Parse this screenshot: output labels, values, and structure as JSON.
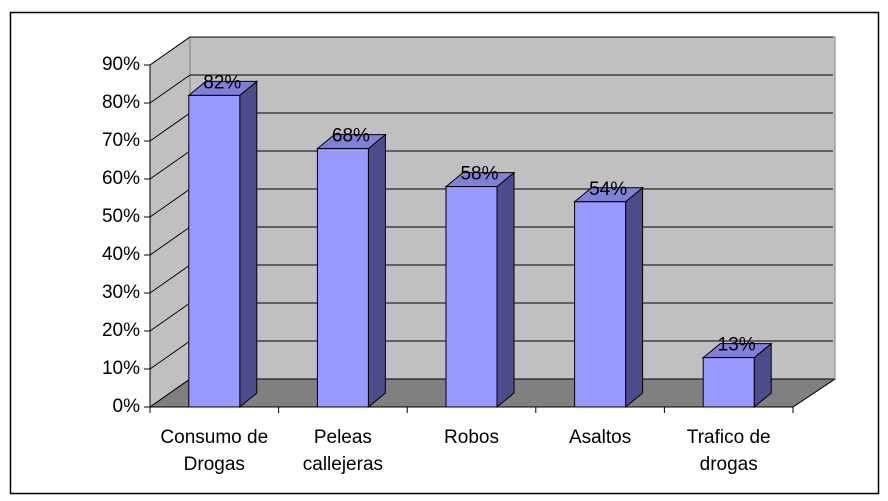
{
  "chart_data": {
    "type": "bar",
    "categories": [
      "Consumo de Drogas",
      "Peleas callejeras",
      "Robos",
      "Asaltos",
      "Trafico de drogas"
    ],
    "values": [
      82,
      68,
      58,
      54,
      13
    ],
    "value_labels": [
      "82%",
      "68%",
      "58%",
      "54%",
      "13%"
    ],
    "color": "#9999ff",
    "ylim": [
      0,
      90
    ],
    "yticks": [
      {
        "value": 0,
        "label": "0%"
      },
      {
        "value": 10,
        "label": "10%"
      },
      {
        "value": 20,
        "label": "20%"
      },
      {
        "value": 30,
        "label": "30%"
      },
      {
        "value": 40,
        "label": "40%"
      },
      {
        "value": 50,
        "label": "50%"
      },
      {
        "value": 60,
        "label": "60%"
      },
      {
        "value": 70,
        "label": "70%"
      },
      {
        "value": 80,
        "label": "80%"
      },
      {
        "value": 90,
        "label": "90%"
      }
    ],
    "grid": true
  }
}
